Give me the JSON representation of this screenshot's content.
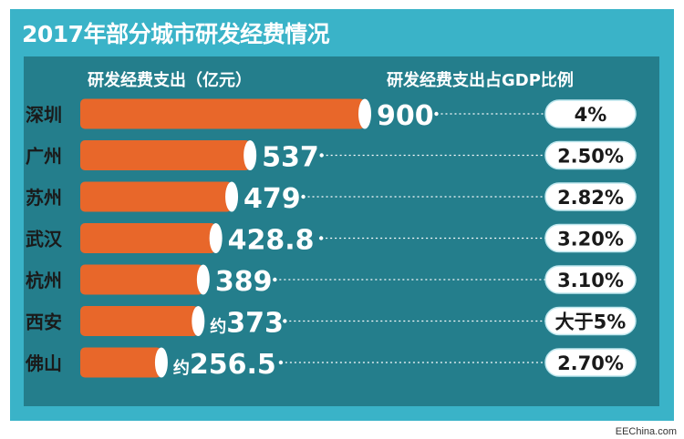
{
  "title": "2017年部分城市研发经费情况",
  "source": "EEChina.com",
  "colors": {
    "frame": "#3ab3c8",
    "panel": "#247e8c",
    "bar": "#e8672a",
    "bar_end": "#ffffff",
    "pill_fill": "#ffffff",
    "text_dark": "#1a1a1a"
  },
  "chart_data": {
    "type": "bar",
    "orientation": "horizontal",
    "left_header": "研发经费支出（亿元）",
    "right_header": "研发经费支出占GDP比例",
    "categories": [
      "深圳",
      "广州",
      "苏州",
      "武汉",
      "杭州",
      "西安",
      "佛山"
    ],
    "value_labels": [
      "900",
      "537",
      "479",
      "428.8",
      "389",
      "约373",
      "约256.5"
    ],
    "values": [
      900,
      537,
      479,
      428.8,
      389,
      373,
      256.5
    ],
    "gdp_ratio_labels": [
      "4%",
      "2.50%",
      "2.82%",
      "3.20%",
      "3.10%",
      "大于5%",
      "2.70%"
    ]
  }
}
